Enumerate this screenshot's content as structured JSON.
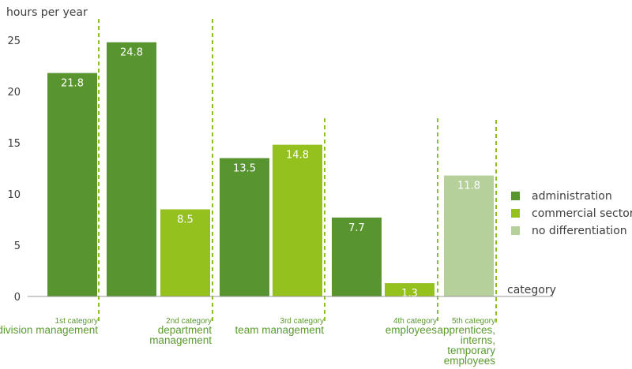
{
  "chart_data": {
    "type": "bar",
    "ylabel": "hours per year",
    "xlabel": "category",
    "ylim": [
      0,
      27
    ],
    "yticks": [
      "0",
      "5",
      "10",
      "15",
      "20",
      "25"
    ],
    "legend_position": "right",
    "series": [
      {
        "name": "administration",
        "color": "#58952f"
      },
      {
        "name": "commercial sector",
        "color": "#95c11f"
      },
      {
        "name": "no differentiation",
        "color": "#b5d09a"
      }
    ],
    "bars": [
      {
        "value": 21.8,
        "label": "21.8",
        "series": 0,
        "group": 0
      },
      {
        "value": 24.8,
        "label": "24.8",
        "series": 0,
        "group": 0
      },
      {
        "value": 8.5,
        "label": "8.5",
        "series": 1,
        "group": 0
      },
      {
        "value": 13.5,
        "label": "13.5",
        "series": 0,
        "group": 1
      },
      {
        "value": 14.8,
        "label": "14.8",
        "series": 1,
        "group": 1
      },
      {
        "value": 7.7,
        "label": "7.7",
        "series": 0,
        "group": 2
      },
      {
        "value": 1.3,
        "label": "1,3",
        "series": 1,
        "group": 2
      },
      {
        "value": 11.8,
        "label": "11.8",
        "series": 2,
        "group": 3
      }
    ],
    "categories": [
      {
        "title": "1st category",
        "lines": [
          "division management"
        ]
      },
      {
        "title": "2nd category",
        "lines": [
          "department",
          "management"
        ]
      },
      {
        "title": "3rd category",
        "lines": [
          "team management"
        ]
      },
      {
        "title": "4th category",
        "lines": [
          "employees"
        ]
      },
      {
        "title": "5th category",
        "lines": [
          "apprentices,",
          "interns,",
          "temporary",
          "employees"
        ]
      }
    ]
  }
}
